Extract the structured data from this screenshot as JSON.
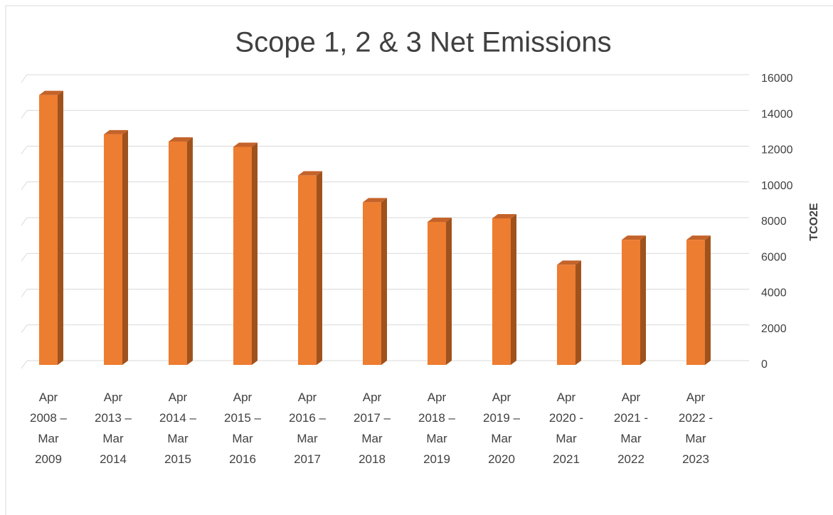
{
  "chart_data": {
    "type": "bar3d",
    "title": "Scope 1, 2 & 3 Net Emissions",
    "y_label": "TCO2E",
    "categories": [
      "Apr 2008 – Mar 2009",
      "Apr 2013 – Mar 2014",
      "Apr 2014 – Mar 2015",
      "Apr 2015 – Mar 2016",
      "Apr 2016 – Mar 2017",
      "Apr 2017 – Mar 2018",
      "Apr 2018 – Mar 2019",
      "Apr 2019 – Mar 2020",
      "Apr 2020 - Mar 2021",
      "Apr 2021 - Mar 2022",
      "Apr 2022 - Mar 2023"
    ],
    "values": [
      15100,
      12900,
      12500,
      12200,
      10600,
      9100,
      8000,
      8200,
      5600,
      7000,
      7000
    ],
    "color": "#ed7d31",
    "side_color": "#a0521d",
    "ylim": [
      0,
      16000
    ],
    "yticks": [
      0,
      2000,
      4000,
      6000,
      8000,
      10000,
      12000,
      14000,
      16000
    ],
    "grid": true
  }
}
